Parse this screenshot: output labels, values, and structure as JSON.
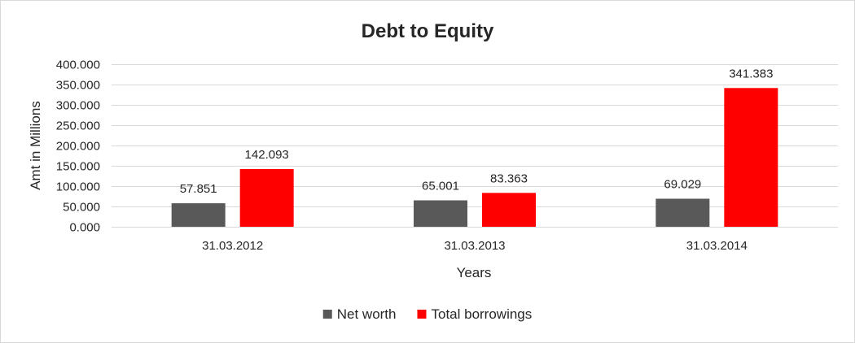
{
  "chart_data": {
    "type": "bar",
    "title": "Debt to Equity",
    "xlabel": "Years",
    "ylabel": "Amt in Millions",
    "categories": [
      "31.03.2012",
      "31.03.2013",
      "31.03.2014"
    ],
    "series": [
      {
        "name": "Net worth",
        "values": [
          57.851,
          65.001,
          69.029
        ],
        "labels": [
          "57.851",
          "65.001",
          "69.029"
        ],
        "color": "#595959"
      },
      {
        "name": "Total borrowings",
        "values": [
          142.093,
          83.363,
          341.383
        ],
        "labels": [
          "142.093",
          "83.363",
          "341.383"
        ],
        "color": "#ff0000"
      }
    ],
    "ylim": [
      0,
      400
    ],
    "yticks": [
      0,
      50,
      100,
      150,
      200,
      250,
      300,
      350,
      400
    ],
    "ytick_labels": [
      "0.000",
      "50.000",
      "100.000",
      "150.000",
      "200.000",
      "250.000",
      "300.000",
      "350.000",
      "400.000"
    ],
    "grid": true,
    "legend_position": "bottom"
  }
}
